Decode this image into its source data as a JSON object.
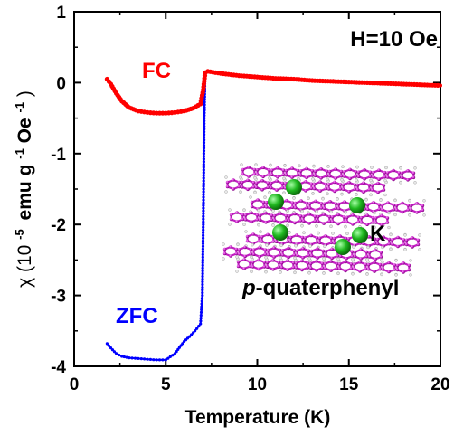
{
  "chart_data": {
    "type": "line",
    "xlabel": "Temperature (K)",
    "ylabel": {
      "prefix": "χ (10",
      "exp1": "-5",
      "mid": "emu g",
      "exp2": "-1",
      "mid2": "Oe",
      "exp3": "-1",
      "suffix": ")"
    },
    "xlim": [
      0,
      20
    ],
    "ylim": [
      -4,
      1
    ],
    "x_ticks": [
      0,
      5,
      10,
      15,
      20
    ],
    "y_ticks": [
      1,
      0,
      -1,
      -2,
      -3,
      -4
    ],
    "grid": false,
    "annotations": {
      "field": "H=10 Oe",
      "fc_label": "FC",
      "zfc_label": "ZFC",
      "compound_italic": "p",
      "compound_rest": "-quaterphenyl",
      "atom_label": "K"
    },
    "series": [
      {
        "name": "FC",
        "color": "#ff0000",
        "x": [
          1.8,
          2.0,
          2.3,
          2.6,
          3.0,
          3.5,
          4.0,
          4.5,
          5.0,
          5.5,
          6.0,
          6.5,
          6.9,
          7.05,
          7.15,
          7.3,
          8.0,
          9.0,
          10.0,
          11.0,
          12.0,
          13.0,
          14.0,
          15.0,
          16.0,
          17.0,
          18.0,
          19.0,
          20.0
        ],
        "y": [
          0.05,
          -0.02,
          -0.15,
          -0.26,
          -0.35,
          -0.4,
          -0.42,
          -0.43,
          -0.43,
          -0.42,
          -0.4,
          -0.36,
          -0.3,
          -0.1,
          0.14,
          0.16,
          0.13,
          0.1,
          0.08,
          0.06,
          0.05,
          0.03,
          0.02,
          0.01,
          0.0,
          -0.01,
          -0.02,
          -0.03,
          -0.04
        ]
      },
      {
        "name": "ZFC",
        "color": "#0000ff",
        "x": [
          1.8,
          2.0,
          2.3,
          2.6,
          3.0,
          3.5,
          4.0,
          4.5,
          5.0,
          5.5,
          6.0,
          6.3,
          6.6,
          6.9,
          7.0,
          7.05,
          7.1,
          7.15,
          7.3,
          8.0,
          9.0,
          10.0,
          11.0,
          12.0,
          13.0,
          14.0,
          15.0,
          16.0,
          17.0,
          18.0,
          19.0,
          20.0
        ],
        "y": [
          -3.68,
          -3.74,
          -3.82,
          -3.86,
          -3.88,
          -3.89,
          -3.9,
          -3.91,
          -3.91,
          -3.82,
          -3.65,
          -3.58,
          -3.5,
          -3.4,
          -3.0,
          -2.0,
          -0.5,
          0.14,
          0.16,
          0.13,
          0.1,
          0.08,
          0.06,
          0.05,
          0.03,
          0.02,
          0.01,
          0.0,
          -0.01,
          -0.02,
          -0.03,
          -0.04
        ]
      }
    ]
  }
}
